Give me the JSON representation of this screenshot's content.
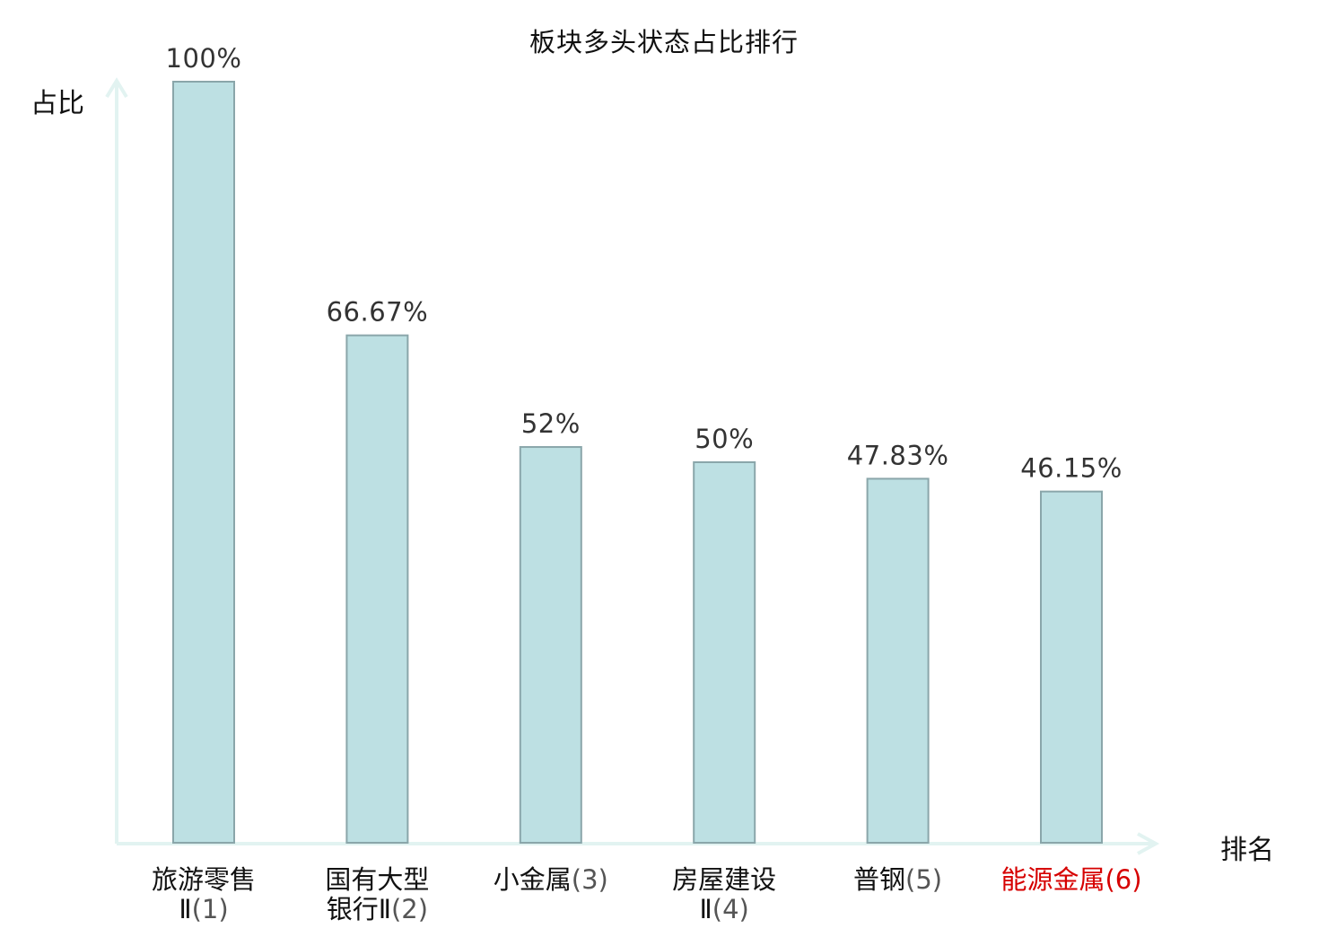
{
  "chart_data": {
    "type": "bar",
    "title": "板块多头状态占比排行",
    "ylabel": "占比",
    "xlabel": "排名",
    "ylim": [
      0,
      100
    ],
    "grid": false,
    "categories": [
      {
        "name_lines": [
          "旅游零售",
          "Ⅱ"
        ],
        "rank": "(1)",
        "highlight": false
      },
      {
        "name_lines": [
          "国有大型",
          "银行Ⅱ"
        ],
        "rank": "(2)",
        "highlight": false
      },
      {
        "name_lines": [
          "小金属"
        ],
        "rank": "(3)",
        "highlight": false
      },
      {
        "name_lines": [
          "房屋建设",
          "Ⅱ"
        ],
        "rank": "(4)",
        "highlight": false
      },
      {
        "name_lines": [
          "普钢"
        ],
        "rank": "(5)",
        "highlight": false
      },
      {
        "name_lines": [
          "能源金属"
        ],
        "rank": "(6)",
        "highlight": true
      }
    ],
    "values": [
      100,
      66.67,
      52,
      50,
      47.83,
      46.15
    ],
    "value_labels": [
      "100%",
      "66.67%",
      "52%",
      "50%",
      "47.83%",
      "46.15%"
    ]
  },
  "colors": {
    "bar_fill": "#bde0e3",
    "bar_stroke": "#8aa6aa",
    "axis": "#e2f3f1",
    "highlight": "#d60000"
  }
}
